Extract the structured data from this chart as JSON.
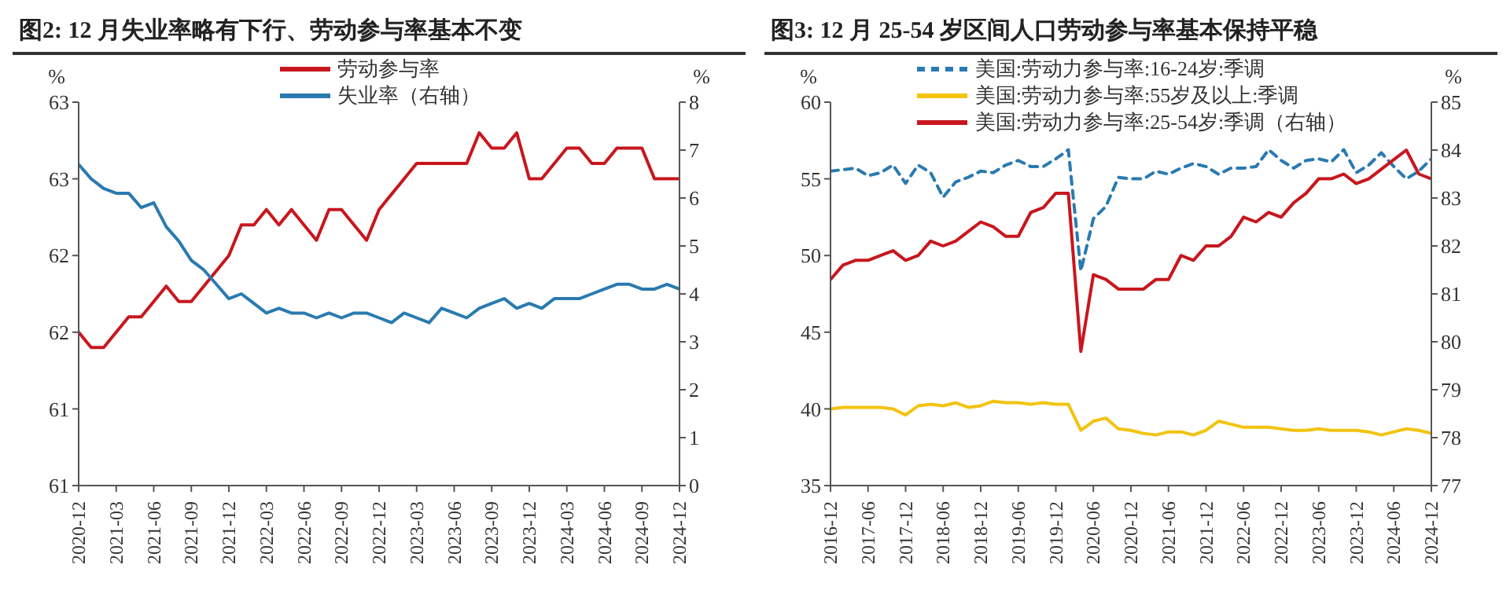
{
  "chart_data": [
    {
      "type": "line",
      "title": "图2: 12 月失业率略有下行、劳动参与率基本不变",
      "ylabel": "%",
      "y2label": "%",
      "categories": [
        "2020-12",
        null,
        null,
        "2021-03",
        null,
        null,
        "2021-06",
        null,
        null,
        "2021-09",
        null,
        null,
        "2021-12",
        null,
        null,
        "2022-03",
        null,
        null,
        "2022-06",
        null,
        null,
        "2022-09",
        null,
        null,
        "2022-12",
        null,
        null,
        "2023-03",
        null,
        null,
        "2023-06",
        null,
        null,
        "2023-09",
        null,
        null,
        "2023-12",
        null,
        null,
        "2024-03",
        null,
        null,
        "2024-06",
        null,
        null,
        "2024-09",
        null,
        null,
        "2024-12"
      ],
      "series": [
        {
          "name": "劳动参与率",
          "color": "#c8161d",
          "values": [
            61.5,
            61.4,
            61.4,
            61.5,
            61.6,
            61.6,
            61.7,
            61.8,
            61.7,
            61.7,
            61.8,
            61.9,
            62.0,
            62.2,
            62.2,
            62.3,
            62.2,
            62.3,
            62.2,
            62.1,
            62.3,
            62.3,
            62.2,
            62.1,
            62.3,
            62.4,
            62.5,
            62.6,
            62.6,
            62.6,
            62.6,
            62.6,
            62.8,
            62.7,
            62.7,
            62.8,
            62.5,
            62.5,
            62.6,
            62.7,
            62.7,
            62.6,
            62.6,
            62.7,
            62.7,
            62.7,
            62.5,
            62.5,
            62.5
          ]
        },
        {
          "name": "失业率（右轴）",
          "color": "#2a7ab0",
          "axis": "y2",
          "values": [
            6.7,
            6.4,
            6.2,
            6.1,
            6.1,
            5.8,
            5.9,
            5.4,
            5.1,
            4.7,
            4.5,
            4.2,
            3.9,
            4.0,
            3.8,
            3.6,
            3.7,
            3.6,
            3.6,
            3.5,
            3.6,
            3.5,
            3.6,
            3.6,
            3.5,
            3.4,
            3.6,
            3.5,
            3.4,
            3.7,
            3.6,
            3.5,
            3.7,
            3.8,
            3.9,
            3.7,
            3.8,
            3.7,
            3.9,
            3.9,
            3.9,
            4.0,
            4.1,
            4.2,
            4.2,
            4.1,
            4.1,
            4.2,
            4.1
          ]
        }
      ],
      "ylim": [
        60.5,
        63
      ],
      "yticks": [
        {
          "value": 60.5,
          "label": "61"
        },
        61,
        {
          "value": 61.5,
          "label": "62"
        },
        62,
        {
          "value": 62.5,
          "label": "63"
        },
        63
      ],
      "y2lim": [
        0,
        8
      ],
      "y2ticks": [
        0,
        1,
        2,
        3,
        4,
        5,
        6,
        7,
        8
      ],
      "legend": "top",
      "grid": false,
      "marker": "none"
    },
    {
      "type": "line",
      "title": "图3: 12 月 25-54 岁区间人口劳动参与率基本保持平稳",
      "ylabel": "%",
      "y2label": "%",
      "categories": [
        "2016-12",
        null,
        null,
        "2017-06",
        null,
        null,
        "2017-12",
        null,
        null,
        "2018-06",
        null,
        null,
        "2018-12",
        null,
        null,
        "2019-06",
        null,
        null,
        "2019-12",
        null,
        null,
        "2020-06",
        null,
        null,
        "2020-12",
        null,
        null,
        "2021-06",
        null,
        null,
        "2021-12",
        null,
        null,
        "2022-06",
        null,
        null,
        "2022-12",
        null,
        null,
        "2023-06",
        null,
        null,
        "2023-12",
        null,
        null,
        "2024-06",
        null,
        null,
        "2024-12"
      ],
      "series": [
        {
          "name": "美国:劳动力参与率:16-24岁:季调",
          "color": "#2a7ab0",
          "line_style": "dashed",
          "values": [
            55.5,
            55.6,
            55.7,
            55.2,
            55.4,
            55.9,
            54.7,
            55.9,
            55.4,
            53.8,
            54.8,
            55.1,
            55.5,
            55.4,
            55.9,
            56.2,
            55.8,
            55.8,
            56.3,
            56.9,
            49.0,
            52.4,
            53.2,
            55.1,
            55.0,
            55.0,
            55.5,
            55.3,
            55.7,
            56.0,
            55.8,
            55.3,
            55.7,
            55.7,
            55.8,
            56.9,
            56.2,
            55.7,
            56.2,
            56.3,
            56.1,
            56.9,
            55.4,
            55.9,
            56.7,
            55.8,
            55.0,
            55.5,
            56.3
          ]
        },
        {
          "name": "美国:劳动力参与率:55岁及以上:季调",
          "color": "#f2c30f",
          "values": [
            40.0,
            40.1,
            40.1,
            40.1,
            40.1,
            40.0,
            39.6,
            40.2,
            40.3,
            40.2,
            40.4,
            40.1,
            40.2,
            40.5,
            40.4,
            40.4,
            40.3,
            40.4,
            40.3,
            40.3,
            38.6,
            39.2,
            39.4,
            38.7,
            38.6,
            38.4,
            38.3,
            38.5,
            38.5,
            38.3,
            38.6,
            39.2,
            39.0,
            38.8,
            38.8,
            38.8,
            38.7,
            38.6,
            38.6,
            38.7,
            38.6,
            38.6,
            38.6,
            38.5,
            38.3,
            38.5,
            38.7,
            38.6,
            38.4
          ]
        },
        {
          "name": "美国:劳动力参与率:25-54岁:季调（右轴）",
          "color": "#c8161d",
          "axis": "y2",
          "values": [
            81.3,
            81.6,
            81.7,
            81.7,
            81.8,
            81.9,
            81.7,
            81.8,
            82.1,
            82.0,
            82.1,
            82.3,
            82.5,
            82.4,
            82.2,
            82.2,
            82.7,
            82.8,
            83.1,
            83.1,
            79.8,
            81.4,
            81.3,
            81.1,
            81.1,
            81.1,
            81.3,
            81.3,
            81.8,
            81.7,
            82.0,
            82.0,
            82.2,
            82.6,
            82.5,
            82.7,
            82.6,
            82.9,
            83.1,
            83.4,
            83.4,
            83.5,
            83.3,
            83.4,
            83.6,
            83.8,
            84.0,
            83.5,
            83.4
          ]
        }
      ],
      "ylim": [
        35,
        60
      ],
      "yticks": [
        35,
        40,
        45,
        50,
        55,
        60
      ],
      "y2lim": [
        77,
        85
      ],
      "y2ticks": [
        77,
        78,
        79,
        80,
        81,
        82,
        83,
        84,
        85
      ],
      "legend": "top",
      "grid": false,
      "marker": "none"
    }
  ]
}
